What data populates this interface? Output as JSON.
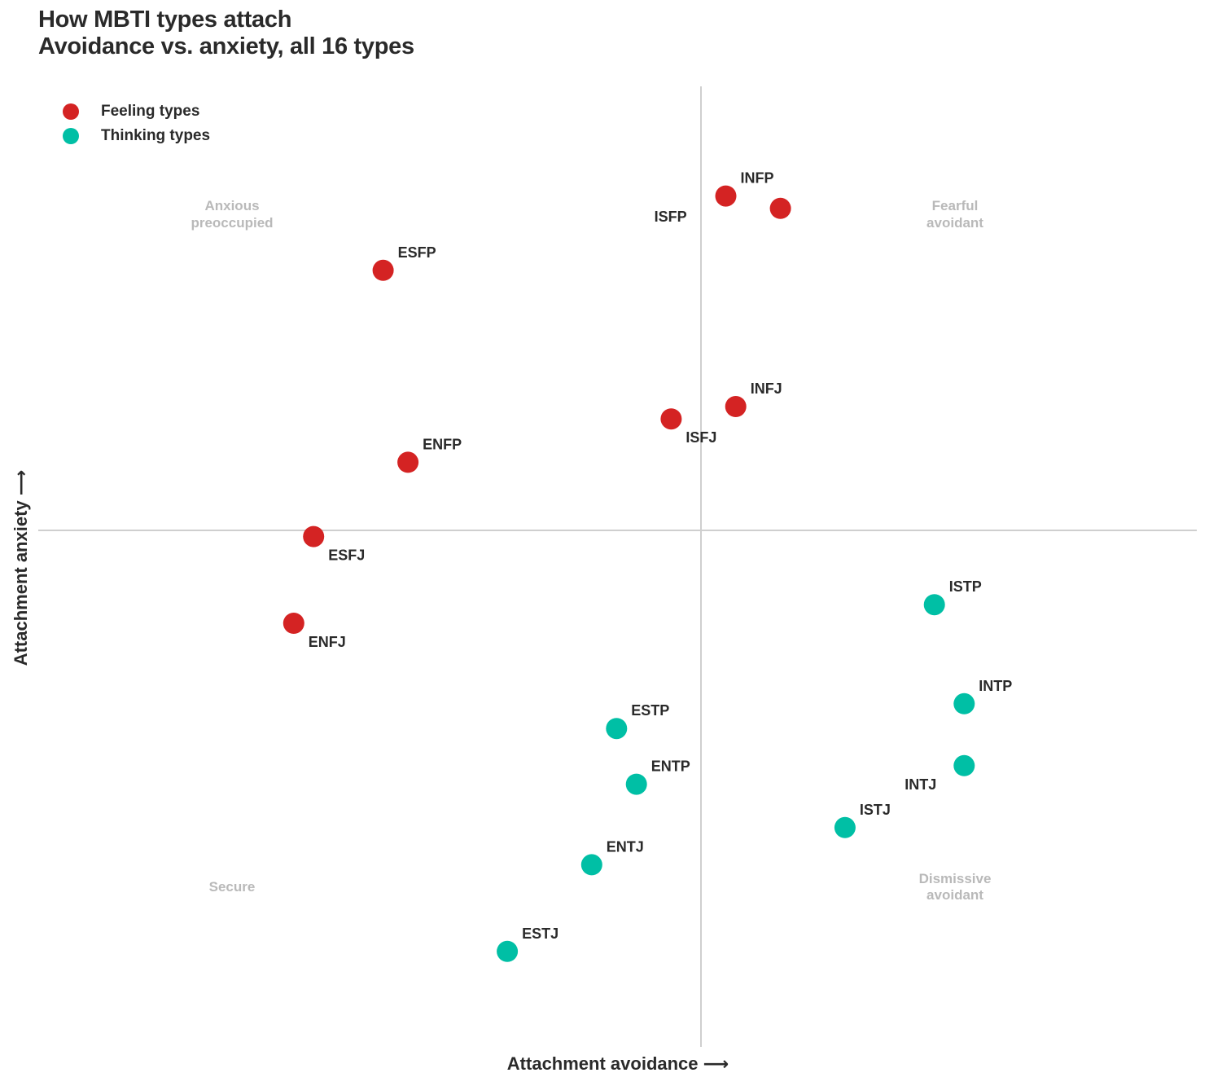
{
  "title": {
    "line1": "How MBTI types attach",
    "line2": "Avoidance vs. anxiety, all 16 types"
  },
  "legend": [
    {
      "label": "Feeling types",
      "color": "#d42323"
    },
    {
      "label": "Thinking types",
      "color": "#00bfa5"
    }
  ],
  "axes": {
    "x_label": "Attachment avoidance ⟶",
    "y_label": "Attachment anxiety ⟶"
  },
  "quadrants": {
    "top_left": [
      "Anxious",
      "preoccupied"
    ],
    "top_right": [
      "Fearful",
      "avoidant"
    ],
    "bottom_left": [
      "Secure"
    ],
    "bottom_right": [
      "Dismissive",
      "avoidant"
    ]
  },
  "chart_data": {
    "type": "scatter",
    "title": "How MBTI types attach — Avoidance vs. anxiety, all 16 types",
    "xlabel": "Attachment avoidance",
    "ylabel": "Attachment anxiety",
    "xlim": [
      -1.0,
      0.75
    ],
    "ylim": [
      -0.8,
      0.72
    ],
    "grid": false,
    "legend_position": "top-left",
    "series": [
      {
        "name": "Feeling types",
        "color": "#d42323",
        "points": [
          {
            "label": "INFP",
            "x": 0.05,
            "y": 0.54,
            "label_pos": "above-right"
          },
          {
            "label": "ISFP",
            "x": 0.16,
            "y": 0.52,
            "label_pos": "left-far"
          },
          {
            "label": "ESFP",
            "x": -0.64,
            "y": 0.42,
            "label_pos": "above-right"
          },
          {
            "label": "INFJ",
            "x": 0.07,
            "y": 0.2,
            "label_pos": "above-right"
          },
          {
            "label": "ISFJ",
            "x": -0.06,
            "y": 0.18,
            "label_pos": "below-right"
          },
          {
            "label": "ENFP",
            "x": -0.59,
            "y": 0.11,
            "label_pos": "above-right"
          },
          {
            "label": "ESFJ",
            "x": -0.78,
            "y": -0.01,
            "label_pos": "below-right"
          },
          {
            "label": "ENFJ",
            "x": -0.82,
            "y": -0.15,
            "label_pos": "below-right"
          }
        ]
      },
      {
        "name": "Thinking types",
        "color": "#00bfa5",
        "points": [
          {
            "label": "ISTP",
            "x": 0.47,
            "y": -0.12,
            "label_pos": "above-right"
          },
          {
            "label": "INTP",
            "x": 0.53,
            "y": -0.28,
            "label_pos": "above-right"
          },
          {
            "label": "INTJ",
            "x": 0.53,
            "y": -0.38,
            "label_pos": "below-left"
          },
          {
            "label": "ISTJ",
            "x": 0.29,
            "y": -0.48,
            "label_pos": "above-right"
          },
          {
            "label": "ESTP",
            "x": -0.17,
            "y": -0.32,
            "label_pos": "above-right"
          },
          {
            "label": "ENTP",
            "x": -0.13,
            "y": -0.41,
            "label_pos": "above-right"
          },
          {
            "label": "ENTJ",
            "x": -0.22,
            "y": -0.54,
            "label_pos": "above-right"
          },
          {
            "label": "ESTJ",
            "x": -0.39,
            "y": -0.68,
            "label_pos": "above-right"
          }
        ]
      }
    ]
  }
}
